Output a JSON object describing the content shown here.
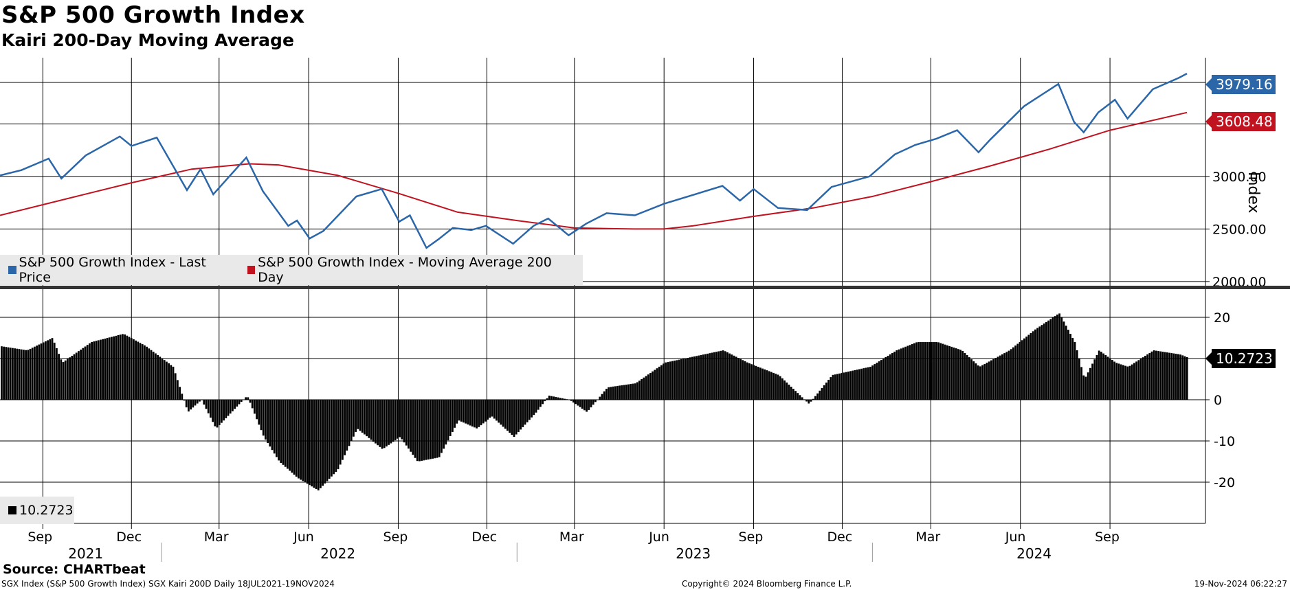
{
  "header": {
    "title": "S&P 500 Growth Index",
    "subtitle": "Kairi 200-Day Moving Average"
  },
  "footer": {
    "source": "Source: CHARTbeat",
    "description": "SGX Index (S&P 500 Growth Index) SGX Kairi 200D  Daily 18JUL2021-19NOV2024",
    "copyright": "Copyright© 2024 Bloomberg Finance L.P.",
    "timestamp": "19-Nov-2024 06:22:27"
  },
  "colors": {
    "price": "#2b67a8",
    "moving_average": "#c0121f",
    "kairi": "#000000",
    "legend_bg": "#e9e9e9"
  },
  "chart_data": [
    {
      "type": "line",
      "title": "S&P 500 Growth Index",
      "ylabel": "Index",
      "ylim": [
        1960,
        4130
      ],
      "y_ticks": [
        "2000.00",
        "2500.00",
        "3000.00",
        "3500.00"
      ],
      "legend": {
        "placement": "bottom-left",
        "entries": [
          "S&P 500 Growth Index - Last Price",
          "S&P 500 Growth Index - Moving Average 200 Day"
        ]
      },
      "last_values": {
        "price": "3979.16",
        "moving_average": "3608.48"
      },
      "series": [
        {
          "name": "S&P 500 Growth Index - Last Price",
          "x": [
            "2021-07-19",
            "2021-08-10",
            "2021-09-07",
            "2021-09-20",
            "2021-10-15",
            "2021-11-19",
            "2021-12-01",
            "2021-12-27",
            "2022-01-27",
            "2022-02-10",
            "2022-02-23",
            "2022-03-29",
            "2022-04-15",
            "2022-05-11",
            "2022-05-20",
            "2022-06-02",
            "2022-06-16",
            "2022-07-20",
            "2022-08-15",
            "2022-09-02",
            "2022-09-13",
            "2022-09-30",
            "2022-10-12",
            "2022-10-27",
            "2022-11-15",
            "2022-11-30",
            "2022-12-28",
            "2023-01-18",
            "2023-02-02",
            "2023-02-23",
            "2023-03-13",
            "2023-04-03",
            "2023-05-02",
            "2023-06-01",
            "2023-07-31",
            "2023-08-18",
            "2023-09-01",
            "2023-09-26",
            "2023-10-26",
            "2023-11-20",
            "2023-12-29",
            "2024-01-24",
            "2024-02-14",
            "2024-03-07",
            "2024-03-28",
            "2024-04-19",
            "2024-05-01",
            "2024-06-05",
            "2024-07-10",
            "2024-07-26",
            "2024-08-05",
            "2024-08-20",
            "2024-09-06",
            "2024-09-19",
            "2024-10-15",
            "2024-11-11",
            "2024-11-19"
          ],
          "y": [
            3010,
            3060,
            3170,
            2980,
            3200,
            3380,
            3290,
            3370,
            2870,
            3070,
            2830,
            3180,
            2860,
            2530,
            2580,
            2410,
            2480,
            2810,
            2880,
            2570,
            2630,
            2320,
            2400,
            2510,
            2490,
            2530,
            2360,
            2530,
            2600,
            2440,
            2550,
            2650,
            2630,
            2740,
            2910,
            2770,
            2880,
            2700,
            2680,
            2900,
            3000,
            3210,
            3300,
            3360,
            3440,
            3230,
            3350,
            3670,
            3880,
            3520,
            3420,
            3610,
            3730,
            3550,
            3830,
            3940,
            3979.16
          ]
        },
        {
          "name": "S&P 500 Growth Index - Moving Average 200 Day",
          "x": [
            "2021-07-19",
            "2021-10-01",
            "2021-12-01",
            "2022-02-01",
            "2022-04-01",
            "2022-05-01",
            "2022-07-01",
            "2022-09-01",
            "2022-11-01",
            "2023-01-01",
            "2023-03-01",
            "2023-05-01",
            "2023-06-01",
            "2023-07-01",
            "2023-09-01",
            "2023-11-01",
            "2024-01-01",
            "2024-03-01",
            "2024-05-01",
            "2024-07-01",
            "2024-09-01",
            "2024-11-19"
          ],
          "y": [
            2630,
            2800,
            2940,
            3070,
            3120,
            3110,
            3010,
            2840,
            2660,
            2580,
            2510,
            2500,
            2500,
            2530,
            2620,
            2700,
            2810,
            2950,
            3100,
            3260,
            3440,
            3608.48
          ]
        }
      ]
    },
    {
      "type": "bar",
      "title": "Kairi 200-Day Moving Average",
      "ylim": [
        -30,
        27
      ],
      "y_ticks": [
        "-20",
        "-10",
        "0",
        "10",
        "20"
      ],
      "legend": {
        "placement": "bottom-left",
        "entries": [
          "10.2723"
        ]
      },
      "last_value": "10.2723",
      "x": [
        "2021-07-19",
        "2021-08-15",
        "2021-09-10",
        "2021-09-20",
        "2021-10-20",
        "2021-11-22",
        "2021-12-15",
        "2022-01-12",
        "2022-01-27",
        "2022-02-10",
        "2022-02-25",
        "2022-03-29",
        "2022-04-15",
        "2022-05-01",
        "2022-05-20",
        "2022-06-10",
        "2022-06-30",
        "2022-07-20",
        "2022-08-15",
        "2022-09-02",
        "2022-09-20",
        "2022-10-12",
        "2022-11-01",
        "2022-11-20",
        "2022-12-05",
        "2022-12-28",
        "2023-01-20",
        "2023-02-02",
        "2023-02-23",
        "2023-03-13",
        "2023-04-03",
        "2023-05-02",
        "2023-06-01",
        "2023-07-31",
        "2023-08-25",
        "2023-09-26",
        "2023-10-27",
        "2023-11-20",
        "2023-12-29",
        "2024-01-25",
        "2024-02-15",
        "2024-03-07",
        "2024-04-01",
        "2024-04-19",
        "2024-05-20",
        "2024-06-15",
        "2024-07-10",
        "2024-07-26",
        "2024-08-05",
        "2024-08-20",
        "2024-09-06",
        "2024-09-19",
        "2024-10-15",
        "2024-11-11",
        "2024-11-19"
      ],
      "values": [
        13,
        12,
        15,
        9,
        14,
        16,
        13,
        8,
        -3,
        0,
        -7,
        1,
        -9,
        -15,
        -19,
        -22,
        -17,
        -7,
        -12,
        -9,
        -15,
        -14,
        -5,
        -7,
        -4,
        -9,
        -3,
        1,
        0,
        -3,
        3,
        4,
        9,
        12,
        9,
        6,
        -1,
        6,
        8,
        12,
        14,
        14,
        12,
        8,
        12,
        17,
        21,
        14,
        5,
        12,
        9,
        8,
        12,
        11,
        10.2723
      ]
    }
  ],
  "x_axis": {
    "months": [
      "Sep",
      "Dec",
      "Mar",
      "Jun",
      "Sep",
      "Dec",
      "Mar",
      "Jun",
      "Sep",
      "Dec",
      "Mar",
      "Jun",
      "Sep"
    ],
    "years": [
      "2021",
      "2022",
      "2023",
      "2024"
    ]
  }
}
